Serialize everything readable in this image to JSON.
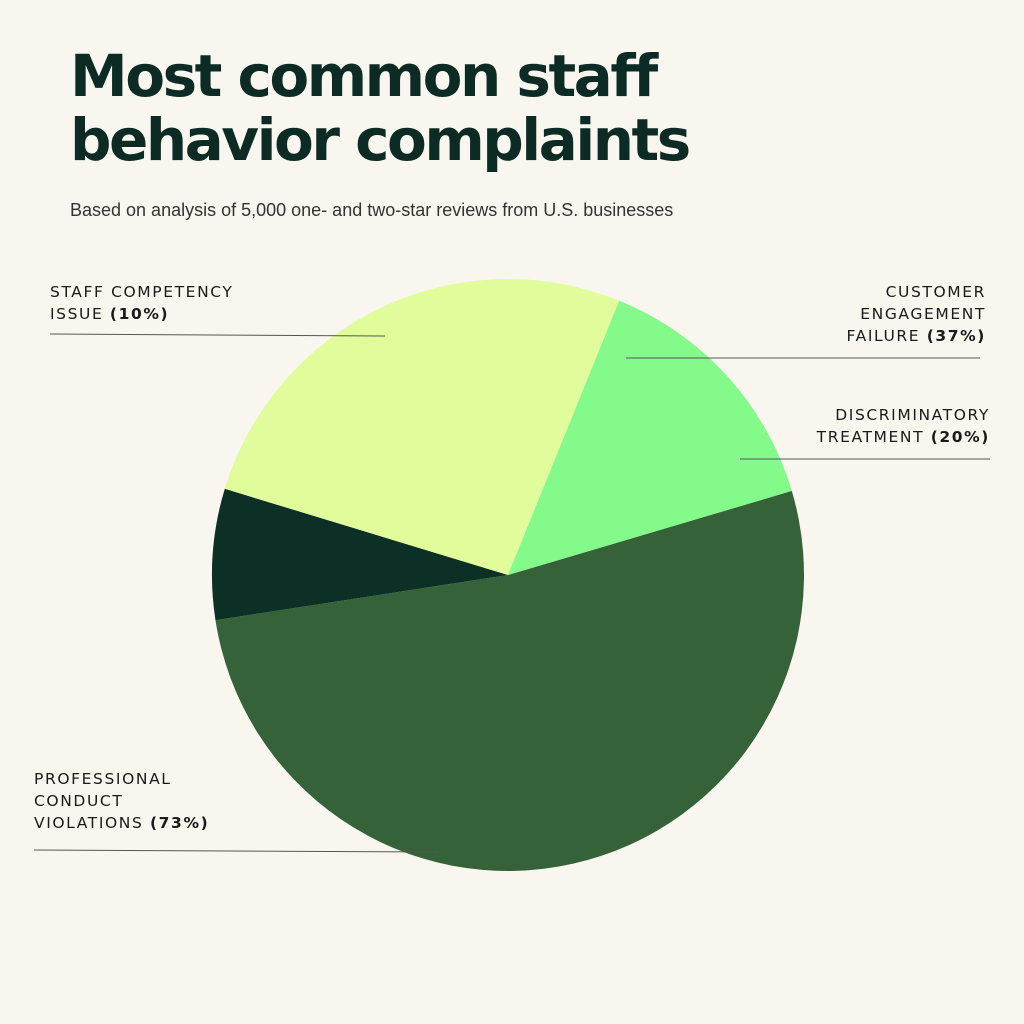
{
  "chart_data": {
    "type": "pie",
    "title": "Most common staff behavior complaints",
    "title_lines": [
      "Most common staff",
      "behavior complaints"
    ],
    "subtitle": "Based on analysis of 5,000 one- and two-star reviews from U.S. businesses",
    "slices": [
      {
        "name": "Professional conduct violations",
        "value": 73,
        "color": "#356239",
        "label_lines": [
          "PROFESSIONAL",
          "CONDUCT",
          "VIOLATIONS"
        ],
        "pct_text": "(73%)"
      },
      {
        "name": "Staff competency issue",
        "value": 10,
        "color": "#0c2f26",
        "label_lines": [
          "STAFF COMPETENCY",
          "ISSUE"
        ],
        "pct_text": "(10%)"
      },
      {
        "name": "Customer engagement failure",
        "value": 37,
        "color": "#e1fc9b",
        "label_lines": [
          "CUSTOMER",
          "ENGAGEMENT",
          "FAILURE"
        ],
        "pct_text": "(37%)"
      },
      {
        "name": "Discriminatory treatment",
        "value": 20,
        "color": "#84fa8b",
        "label_lines": [
          "DISCRIMINATORY",
          "TREATMENT"
        ],
        "pct_text": "(20%)"
      }
    ]
  }
}
